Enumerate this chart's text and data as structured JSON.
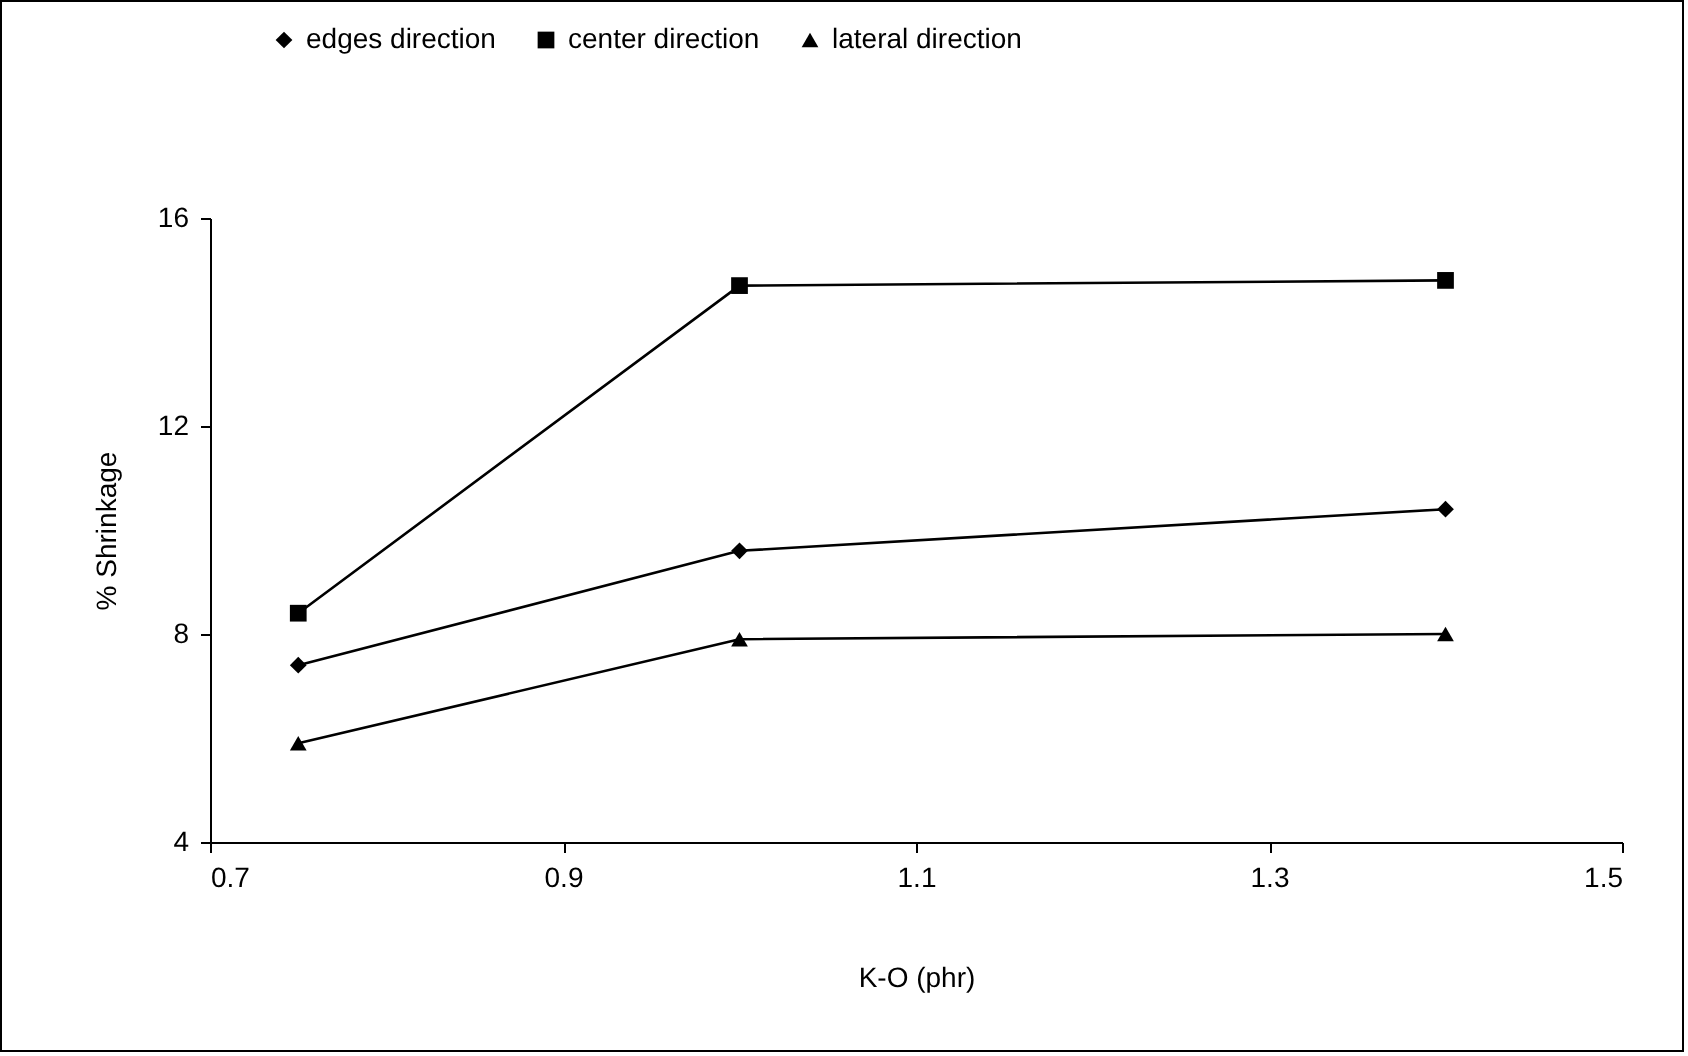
{
  "chart_data": {
    "type": "line",
    "xlabel": "K-O (phr)",
    "ylabel": "% Shrinkage",
    "x": [
      0.75,
      1.0,
      1.4
    ],
    "series": [
      {
        "name": "edges direction",
        "color": "#000000",
        "marker": "diamond",
        "values": [
          7.4,
          9.6,
          10.4
        ]
      },
      {
        "name": "center direction",
        "color": "#000000",
        "marker": "square",
        "values": [
          8.4,
          14.7,
          14.8
        ]
      },
      {
        "name": "lateral direction",
        "color": "#000000",
        "marker": "triangle",
        "values": [
          5.9,
          7.9,
          8.0
        ]
      }
    ],
    "xlim": [
      0.7,
      1.5
    ],
    "xticks": [
      0.7,
      0.9,
      1.1,
      1.3,
      1.5
    ],
    "ylim": [
      4,
      16
    ],
    "yticks": [
      4,
      8,
      12,
      16
    ],
    "grid": false,
    "legend": "top",
    "line_style": "solid"
  }
}
